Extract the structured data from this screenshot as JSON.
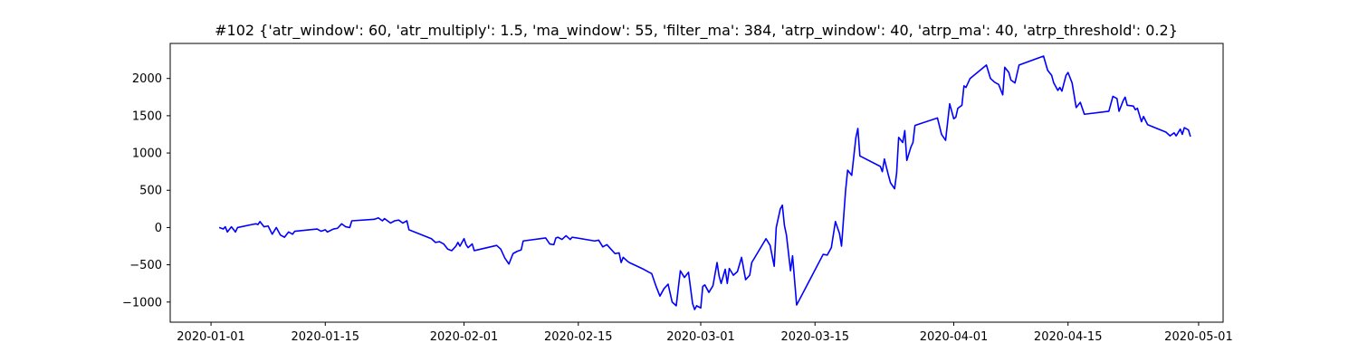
{
  "chart_data": {
    "type": "line",
    "title": "#102 {'atr_window': 60, 'atr_multiply': 1.5, 'ma_window': 55, 'filter_ma': 384, 'atrp_window': 40, 'atrp_ma': 40, 'atrp_threshold': 0.2}",
    "xlabel": "",
    "ylabel": "",
    "x_axis": "date",
    "xlim": [
      "2019-12-27",
      "2020-05-04"
    ],
    "ylim": [
      -1270,
      2470
    ],
    "xticks": [
      "2020-01-01",
      "2020-01-15",
      "2020-02-01",
      "2020-02-15",
      "2020-03-01",
      "2020-03-15",
      "2020-04-01",
      "2020-04-15",
      "2020-05-01"
    ],
    "yticks": [
      -1000,
      -500,
      0,
      500,
      1000,
      1500,
      2000
    ],
    "grid": false,
    "series": [
      {
        "color": "#0000ff",
        "points": [
          [
            "2020-01-02",
            0
          ],
          [
            "2020-01-02 12:00",
            -20
          ],
          [
            "2020-01-02 18:00",
            10
          ],
          [
            "2020-01-03",
            -60
          ],
          [
            "2020-01-03 12:00",
            10
          ],
          [
            "2020-01-04",
            -60
          ],
          [
            "2020-01-04 06:00",
            0
          ],
          [
            "2020-01-06",
            40
          ],
          [
            "2020-01-06 12:00",
            50
          ],
          [
            "2020-01-06 18:00",
            40
          ],
          [
            "2020-01-07",
            80
          ],
          [
            "2020-01-07 12:00",
            10
          ],
          [
            "2020-01-08",
            20
          ],
          [
            "2020-01-08 12:00",
            -90
          ],
          [
            "2020-01-09",
            0
          ],
          [
            "2020-01-09 12:00",
            -100
          ],
          [
            "2020-01-10",
            -130
          ],
          [
            "2020-01-10 12:00",
            -60
          ],
          [
            "2020-01-11",
            -90
          ],
          [
            "2020-01-11 06:00",
            -50
          ],
          [
            "2020-01-14",
            -20
          ],
          [
            "2020-01-14 12:00",
            -50
          ],
          [
            "2020-01-15",
            -30
          ],
          [
            "2020-01-15 06:00",
            -60
          ],
          [
            "2020-01-16",
            -20
          ],
          [
            "2020-01-16 12:00",
            -10
          ],
          [
            "2020-01-17",
            50
          ],
          [
            "2020-01-17 12:00",
            10
          ],
          [
            "2020-01-18",
            0
          ],
          [
            "2020-01-18 06:00",
            90
          ],
          [
            "2020-01-21",
            110
          ],
          [
            "2020-01-21 12:00",
            130
          ],
          [
            "2020-01-22",
            90
          ],
          [
            "2020-01-22 06:00",
            120
          ],
          [
            "2020-01-23",
            60
          ],
          [
            "2020-01-23 12:00",
            90
          ],
          [
            "2020-01-24",
            100
          ],
          [
            "2020-01-24 12:00",
            60
          ],
          [
            "2020-01-25",
            90
          ],
          [
            "2020-01-25 06:00",
            -30
          ],
          [
            "2020-01-28",
            -150
          ],
          [
            "2020-01-28 12:00",
            -200
          ],
          [
            "2020-01-29",
            -190
          ],
          [
            "2020-01-29 12:00",
            -220
          ],
          [
            "2020-01-30",
            -290
          ],
          [
            "2020-01-30 12:00",
            -310
          ],
          [
            "2020-01-31",
            -250
          ],
          [
            "2020-01-31 06:00",
            -200
          ],
          [
            "2020-01-31 12:00",
            -250
          ],
          [
            "2020-02-01",
            -150
          ],
          [
            "2020-02-01 06:00",
            -230
          ],
          [
            "2020-02-01 12:00",
            -270
          ],
          [
            "2020-02-02",
            -220
          ],
          [
            "2020-02-02 06:00",
            -310
          ],
          [
            "2020-02-05",
            -240
          ],
          [
            "2020-02-05 12:00",
            -290
          ],
          [
            "2020-02-06",
            -410
          ],
          [
            "2020-02-06 12:00",
            -490
          ],
          [
            "2020-02-07",
            -350
          ],
          [
            "2020-02-07 12:00",
            -320
          ],
          [
            "2020-02-08",
            -300
          ],
          [
            "2020-02-08 06:00",
            -180
          ],
          [
            "2020-02-11",
            -140
          ],
          [
            "2020-02-11 12:00",
            -220
          ],
          [
            "2020-02-12",
            -230
          ],
          [
            "2020-02-12 06:00",
            -140
          ],
          [
            "2020-02-12 12:00",
            -130
          ],
          [
            "2020-02-13",
            -160
          ],
          [
            "2020-02-13 12:00",
            -110
          ],
          [
            "2020-02-14",
            -160
          ],
          [
            "2020-02-14 06:00",
            -130
          ],
          [
            "2020-02-17",
            -180
          ],
          [
            "2020-02-17 12:00",
            -170
          ],
          [
            "2020-02-18",
            -260
          ],
          [
            "2020-02-18 12:00",
            -230
          ],
          [
            "2020-02-19",
            -290
          ],
          [
            "2020-02-19 12:00",
            -350
          ],
          [
            "2020-02-20",
            -340
          ],
          [
            "2020-02-20 06:00",
            -470
          ],
          [
            "2020-02-20 12:00",
            -400
          ],
          [
            "2020-02-21",
            -450
          ],
          [
            "2020-02-21 06:00",
            -470
          ],
          [
            "2020-02-23",
            -560
          ],
          [
            "2020-02-24",
            -620
          ],
          [
            "2020-02-24 12:00",
            -780
          ],
          [
            "2020-02-25",
            -920
          ],
          [
            "2020-02-25 12:00",
            -820
          ],
          [
            "2020-02-26",
            -760
          ],
          [
            "2020-02-26 12:00",
            -1000
          ],
          [
            "2020-02-27",
            -1050
          ],
          [
            "2020-02-27 12:00",
            -580
          ],
          [
            "2020-02-28",
            -670
          ],
          [
            "2020-02-28 12:00",
            -600
          ],
          [
            "2020-02-29",
            -1020
          ],
          [
            "2020-02-29 06:00",
            -1100
          ],
          [
            "2020-02-29 12:00",
            -1050
          ],
          [
            "2020-03-01",
            -1080
          ],
          [
            "2020-03-01 06:00",
            -790
          ],
          [
            "2020-03-01 12:00",
            -770
          ],
          [
            "2020-03-02",
            -870
          ],
          [
            "2020-03-02 12:00",
            -780
          ],
          [
            "2020-03-03",
            -470
          ],
          [
            "2020-03-03 06:00",
            -650
          ],
          [
            "2020-03-03 12:00",
            -750
          ],
          [
            "2020-03-04",
            -560
          ],
          [
            "2020-03-04 06:00",
            -750
          ],
          [
            "2020-03-04 12:00",
            -550
          ],
          [
            "2020-03-05",
            -640
          ],
          [
            "2020-03-05 12:00",
            -590
          ],
          [
            "2020-03-06",
            -400
          ],
          [
            "2020-03-06 06:00",
            -550
          ],
          [
            "2020-03-06 12:00",
            -700
          ],
          [
            "2020-03-07",
            -640
          ],
          [
            "2020-03-07 06:00",
            -470
          ],
          [
            "2020-03-09",
            -150
          ],
          [
            "2020-03-09 12:00",
            -240
          ],
          [
            "2020-03-10",
            -520
          ],
          [
            "2020-03-10 06:00",
            0
          ],
          [
            "2020-03-10 18:00",
            250
          ],
          [
            "2020-03-11",
            300
          ],
          [
            "2020-03-11 06:00",
            30
          ],
          [
            "2020-03-11 12:00",
            -100
          ],
          [
            "2020-03-12",
            -580
          ],
          [
            "2020-03-12 06:00",
            -380
          ],
          [
            "2020-03-12 18:00",
            -1040
          ],
          [
            "2020-03-16",
            -360
          ],
          [
            "2020-03-16 12:00",
            -370
          ],
          [
            "2020-03-17",
            -270
          ],
          [
            "2020-03-17 12:00",
            80
          ],
          [
            "2020-03-18",
            -80
          ],
          [
            "2020-03-18 06:00",
            -250
          ],
          [
            "2020-03-18 18:00",
            500
          ],
          [
            "2020-03-19",
            770
          ],
          [
            "2020-03-19 12:00",
            700
          ],
          [
            "2020-03-20",
            1200
          ],
          [
            "2020-03-20 06:00",
            1330
          ],
          [
            "2020-03-20 12:00",
            960
          ],
          [
            "2020-03-23",
            820
          ],
          [
            "2020-03-23 06:00",
            750
          ],
          [
            "2020-03-23 12:00",
            920
          ],
          [
            "2020-03-24",
            700
          ],
          [
            "2020-03-24 06:00",
            600
          ],
          [
            "2020-03-24 18:00",
            520
          ],
          [
            "2020-03-25",
            730
          ],
          [
            "2020-03-25 06:00",
            1210
          ],
          [
            "2020-03-25 18:00",
            1140
          ],
          [
            "2020-03-26",
            1300
          ],
          [
            "2020-03-26 06:00",
            900
          ],
          [
            "2020-03-26 18:00",
            1080
          ],
          [
            "2020-03-27",
            1140
          ],
          [
            "2020-03-27 06:00",
            1370
          ],
          [
            "2020-03-30",
            1470
          ],
          [
            "2020-03-30 12:00",
            1250
          ],
          [
            "2020-03-31",
            1170
          ],
          [
            "2020-03-31 12:00",
            1660
          ],
          [
            "2020-04-01",
            1460
          ],
          [
            "2020-04-01 06:00",
            1480
          ],
          [
            "2020-04-01 12:00",
            1600
          ],
          [
            "2020-04-02",
            1640
          ],
          [
            "2020-04-02 06:00",
            1900
          ],
          [
            "2020-04-02 12:00",
            1880
          ],
          [
            "2020-04-03",
            2000
          ],
          [
            "2020-04-05",
            2180
          ],
          [
            "2020-04-05 12:00",
            2000
          ],
          [
            "2020-04-06",
            1950
          ],
          [
            "2020-04-06 12:00",
            1920
          ],
          [
            "2020-04-07",
            1780
          ],
          [
            "2020-04-07 06:00",
            2150
          ],
          [
            "2020-04-07 18:00",
            2080
          ],
          [
            "2020-04-08",
            1980
          ],
          [
            "2020-04-08 12:00",
            1940
          ],
          [
            "2020-04-09",
            2180
          ],
          [
            "2020-04-12",
            2300
          ],
          [
            "2020-04-12 12:00",
            2110
          ],
          [
            "2020-04-13",
            2040
          ],
          [
            "2020-04-13 06:00",
            1940
          ],
          [
            "2020-04-13 18:00",
            1840
          ],
          [
            "2020-04-14",
            1880
          ],
          [
            "2020-04-14 06:00",
            1830
          ],
          [
            "2020-04-14 18:00",
            2040
          ],
          [
            "2020-04-15",
            2080
          ],
          [
            "2020-04-15 12:00",
            1940
          ],
          [
            "2020-04-16",
            1610
          ],
          [
            "2020-04-16 12:00",
            1680
          ],
          [
            "2020-04-17",
            1520
          ],
          [
            "2020-04-20",
            1560
          ],
          [
            "2020-04-20 12:00",
            1760
          ],
          [
            "2020-04-21",
            1730
          ],
          [
            "2020-04-21 06:00",
            1560
          ],
          [
            "2020-04-21 18:00",
            1700
          ],
          [
            "2020-04-22",
            1750
          ],
          [
            "2020-04-22 06:00",
            1640
          ],
          [
            "2020-04-23",
            1630
          ],
          [
            "2020-04-23 06:00",
            1580
          ],
          [
            "2020-04-23 12:00",
            1600
          ],
          [
            "2020-04-24",
            1420
          ],
          [
            "2020-04-24 06:00",
            1490
          ],
          [
            "2020-04-24 18:00",
            1380
          ],
          [
            "2020-04-27",
            1280
          ],
          [
            "2020-04-27 12:00",
            1230
          ],
          [
            "2020-04-28",
            1270
          ],
          [
            "2020-04-28 06:00",
            1230
          ],
          [
            "2020-04-28 18:00",
            1320
          ],
          [
            "2020-04-29",
            1250
          ],
          [
            "2020-04-29 06:00",
            1340
          ],
          [
            "2020-04-29 18:00",
            1310
          ],
          [
            "2020-04-30",
            1220
          ]
        ]
      }
    ]
  }
}
